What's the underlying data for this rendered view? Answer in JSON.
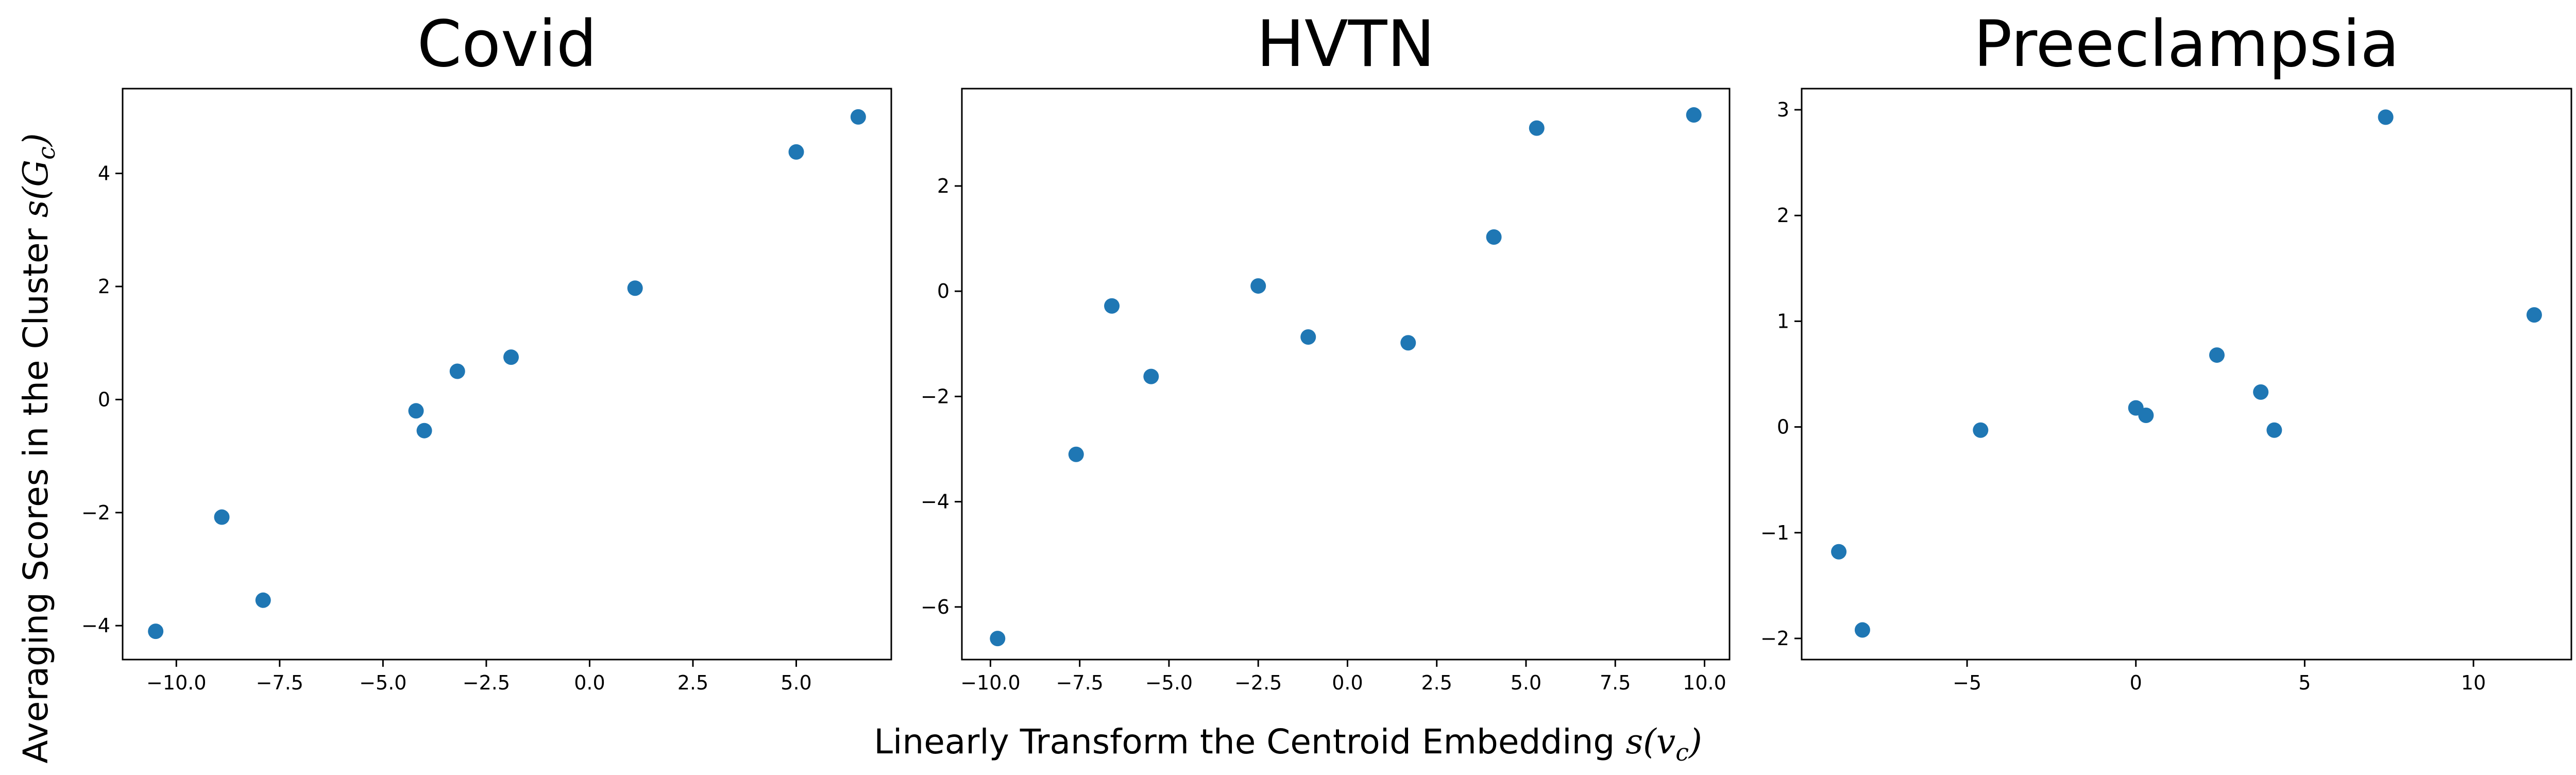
{
  "figure": {
    "ylabel_text": "Averaging Scores in the Cluster ",
    "ylabel_math": "s(G",
    "ylabel_sub": "c",
    "ylabel_close": ")",
    "xlabel_text": "Linearly Transform the Centroid Embedding ",
    "xlabel_math": "s(v",
    "xlabel_sub": "c",
    "xlabel_close": ")"
  },
  "chart_data": [
    {
      "type": "scatter",
      "title": "Covid",
      "color": "#1f77b4",
      "xlim": [
        -11.3,
        7.3
      ],
      "ylim": [
        -4.6,
        5.5
      ],
      "xticks": [
        -10.0,
        -7.5,
        -5.0,
        -2.5,
        0.0,
        2.5,
        5.0
      ],
      "xtick_labels": [
        "−10.0",
        "−7.5",
        "−5.0",
        "−2.5",
        "0.0",
        "2.5",
        "5.0"
      ],
      "yticks": [
        -4,
        -2,
        0,
        2,
        4
      ],
      "ytick_labels": [
        "−4",
        "−2",
        "0",
        "2",
        "4"
      ],
      "points": [
        {
          "x": -10.5,
          "y": -4.1
        },
        {
          "x": -8.9,
          "y": -2.08
        },
        {
          "x": -7.9,
          "y": -3.55
        },
        {
          "x": -4.2,
          "y": -0.2
        },
        {
          "x": -4.0,
          "y": -0.55
        },
        {
          "x": -3.2,
          "y": 0.5
        },
        {
          "x": -1.9,
          "y": 0.75
        },
        {
          "x": 1.1,
          "y": 1.97
        },
        {
          "x": 5.0,
          "y": 4.38
        },
        {
          "x": 6.5,
          "y": 5.0
        }
      ]
    },
    {
      "type": "scatter",
      "title": "HVTN",
      "color": "#1f77b4",
      "xlim": [
        -10.8,
        10.7
      ],
      "ylim": [
        -7.0,
        3.85
      ],
      "xticks": [
        -10.0,
        -7.5,
        -5.0,
        -2.5,
        0.0,
        2.5,
        5.0,
        7.5,
        10.0
      ],
      "xtick_labels": [
        "−10.0",
        "−7.5",
        "−5.0",
        "−2.5",
        "0.0",
        "2.5",
        "5.0",
        "7.5",
        "10.0"
      ],
      "yticks": [
        -6,
        -4,
        -2,
        0,
        2
      ],
      "ytick_labels": [
        "−6",
        "−4",
        "−2",
        "0",
        "2"
      ],
      "points": [
        {
          "x": -9.8,
          "y": -6.6
        },
        {
          "x": -7.6,
          "y": -3.1
        },
        {
          "x": -6.6,
          "y": -0.28
        },
        {
          "x": -5.5,
          "y": -1.62
        },
        {
          "x": -2.5,
          "y": 0.1
        },
        {
          "x": -1.1,
          "y": -0.87
        },
        {
          "x": 1.7,
          "y": -0.98
        },
        {
          "x": 4.1,
          "y": 1.03
        },
        {
          "x": 5.3,
          "y": 3.1
        },
        {
          "x": 9.7,
          "y": 3.35
        }
      ]
    },
    {
      "type": "scatter",
      "title": "Preeclampsia",
      "color": "#1f77b4",
      "xlim": [
        -9.9,
        12.9
      ],
      "ylim": [
        -2.2,
        3.2
      ],
      "xticks": [
        -5,
        0,
        5,
        10
      ],
      "xtick_labels": [
        "−5",
        "0",
        "5",
        "10"
      ],
      "yticks": [
        -2,
        -1,
        0,
        1,
        2,
        3
      ],
      "ytick_labels": [
        "−2",
        "−1",
        "0",
        "1",
        "2",
        "3"
      ],
      "points": [
        {
          "x": -8.8,
          "y": -1.18
        },
        {
          "x": -8.1,
          "y": -1.92
        },
        {
          "x": -4.6,
          "y": -0.03
        },
        {
          "x": 0.0,
          "y": 0.18
        },
        {
          "x": 0.3,
          "y": 0.11
        },
        {
          "x": 2.4,
          "y": 0.68
        },
        {
          "x": 3.7,
          "y": 0.33
        },
        {
          "x": 4.1,
          "y": -0.03
        },
        {
          "x": 7.4,
          "y": 2.93
        },
        {
          "x": 11.8,
          "y": 1.06
        }
      ]
    }
  ]
}
